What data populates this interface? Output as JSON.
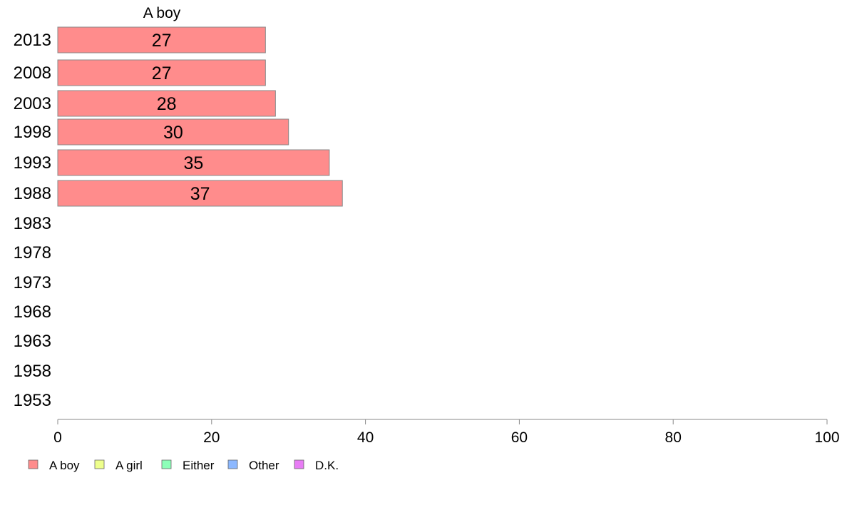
{
  "chart_data": {
    "type": "bar",
    "orientation": "horizontal",
    "series_label": "A boy",
    "categories": [
      "2013",
      "2008",
      "2003",
      "1998",
      "1993",
      "1988",
      "1983",
      "1978",
      "1973",
      "1968",
      "1963",
      "1958",
      "1953"
    ],
    "series": [
      {
        "name": "A boy",
        "values": [
          27,
          27,
          28.3,
          30,
          35.3,
          37,
          null,
          null,
          null,
          null,
          null,
          null,
          null
        ]
      }
    ],
    "data_labels": [
      "27",
      "27",
      "28",
      "30",
      "35",
      "37",
      "",
      "",
      "",
      "",
      "",
      "",
      ""
    ],
    "xlim": [
      0,
      100
    ],
    "xticks": [
      "0",
      "20",
      "40",
      "60",
      "80",
      "100"
    ],
    "grid": false,
    "legend": {
      "placement": "bottom-left",
      "entries": [
        {
          "label": "A boy",
          "color": "#ff8c8c"
        },
        {
          "label": "A girl",
          "color": "#eeff8c"
        },
        {
          "label": "Either",
          "color": "#8cffb8"
        },
        {
          "label": "Other",
          "color": "#8cb8ff"
        },
        {
          "label": "D.K.",
          "color": "#e87cf5"
        }
      ]
    }
  },
  "colors": {
    "bar_fill": "#ff8c8c",
    "bar_stroke": "#888888",
    "axis": "#888888"
  }
}
